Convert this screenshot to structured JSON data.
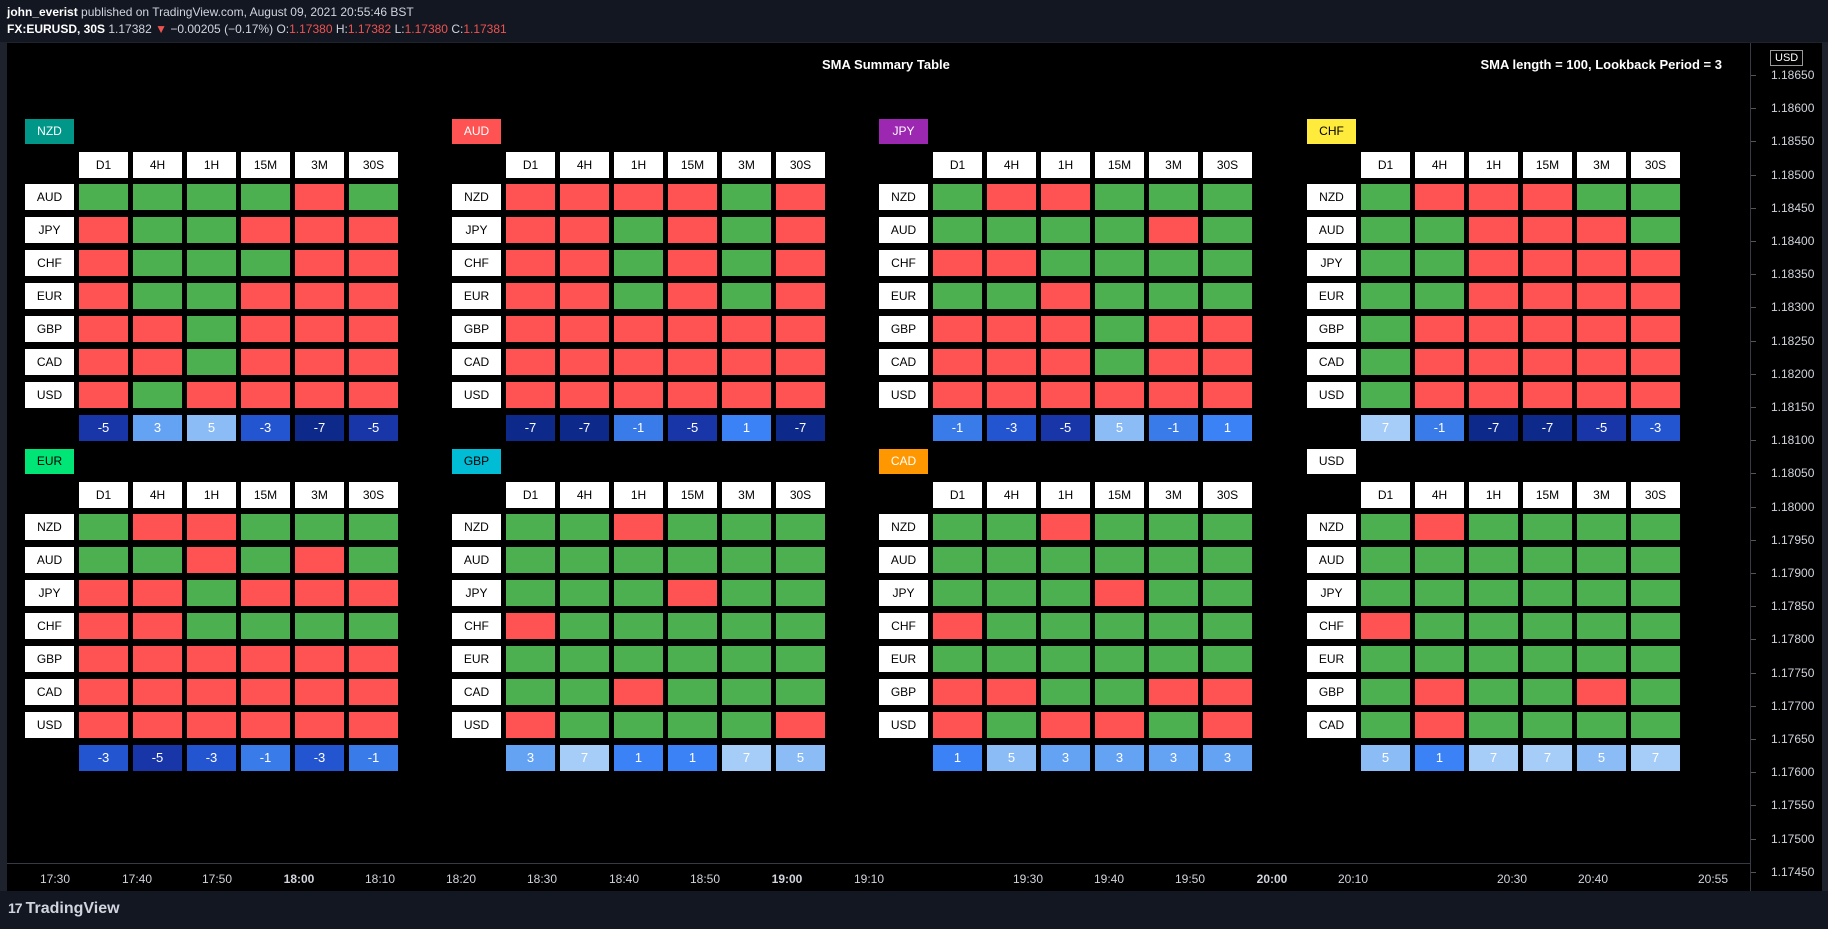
{
  "header": {
    "author": "john_everist",
    "published": "published on TradingView.com, August 09, 2021 20:55:46 BST",
    "symbol": "FX:EURUSD, 30S",
    "price": "1.17382",
    "change": "−0.00205 (−0.17%)",
    "o_label": "O:",
    "o_val": "1.17380",
    "h_label": "H:",
    "h_val": "1.17382",
    "l_label": "L:",
    "l_val": "1.17380",
    "c_label": "C:",
    "c_val": "1.17381"
  },
  "chart_title": "SMA Summary Table",
  "chart_params": "SMA length = 100, Lookback Period = 3",
  "currency_label": "USD",
  "price_ticks": [
    "1.18650",
    "1.18600",
    "1.18550",
    "1.18500",
    "1.18450",
    "1.18400",
    "1.18350",
    "1.18300",
    "1.18250",
    "1.18200",
    "1.18150",
    "1.18100",
    "1.18050",
    "1.18000",
    "1.17950",
    "1.17900",
    "1.17850",
    "1.17800",
    "1.17750",
    "1.17700",
    "1.17650",
    "1.17600",
    "1.17550",
    "1.17500",
    "1.17450"
  ],
  "time_ticks": [
    "17:30",
    "17:40",
    "17:50",
    "18:00",
    "18:10",
    "18:20",
    "18:30",
    "18:40",
    "18:50",
    "19:00",
    "19:10",
    "19:30",
    "19:40",
    "19:50",
    "20:00",
    "20:10",
    "20:30",
    "20:40",
    "20:55"
  ],
  "time_bold": [
    "18:00",
    "19:00",
    "20:00"
  ],
  "footer": {
    "logo_mark": "17",
    "logo_text": "TradingView"
  },
  "timeframes": [
    "D1",
    "4H",
    "1H",
    "15M",
    "3M",
    "30S"
  ],
  "colors": {
    "green": "#4caf50",
    "red": "#ff5252"
  },
  "tables": [
    {
      "base": "NZD",
      "color": "#009688",
      "text": "#fff",
      "rows": [
        "AUD",
        "JPY",
        "CHF",
        "EUR",
        "GBP",
        "CAD",
        "USD"
      ],
      "cells": [
        "GGGGRG",
        "RGGRRR",
        "RGGGRR",
        "RGGRRR",
        "RRGRRR",
        "RRGRRR",
        "RGRRRR"
      ],
      "sums": [
        "-5",
        "3",
        "5",
        "-3",
        "-7",
        "-5"
      ]
    },
    {
      "base": "AUD",
      "color": "#ff5252",
      "text": "#fff",
      "rows": [
        "NZD",
        "JPY",
        "CHF",
        "EUR",
        "GBP",
        "CAD",
        "USD"
      ],
      "cells": [
        "RRRRGR",
        "RRGRGR",
        "RRGRGR",
        "RRGRGR",
        "RRRRRR",
        "RRRRRR",
        "RRRRRR"
      ],
      "sums": [
        "-7",
        "-7",
        "-1",
        "-5",
        "1",
        "-7"
      ]
    },
    {
      "base": "JPY",
      "color": "#9c27b0",
      "text": "#fff",
      "rows": [
        "NZD",
        "AUD",
        "CHF",
        "EUR",
        "GBP",
        "CAD",
        "USD"
      ],
      "cells": [
        "GRRGGG",
        "GGGGRG",
        "RRGGGG",
        "GGRGGG",
        "RRRGRR",
        "RRRGRR",
        "RRRRRR"
      ],
      "sums": [
        "-1",
        "-3",
        "-5",
        "5",
        "-1",
        "1"
      ]
    },
    {
      "base": "CHF",
      "color": "#ffeb3b",
      "text": "#000",
      "rows": [
        "NZD",
        "AUD",
        "JPY",
        "EUR",
        "GBP",
        "CAD",
        "USD"
      ],
      "cells": [
        "GRRRGG",
        "GGRRRG",
        "GGRRRR",
        "GGRRRR",
        "GRRRRR",
        "GRRRRR",
        "GRRRRR"
      ],
      "sums": [
        "7",
        "-1",
        "-7",
        "-7",
        "-5",
        "-3"
      ]
    },
    {
      "base": "EUR",
      "color": "#00e676",
      "text": "#000",
      "rows": [
        "NZD",
        "AUD",
        "JPY",
        "CHF",
        "GBP",
        "CAD",
        "USD"
      ],
      "cells": [
        "GRRGGG",
        "GGRGRG",
        "RRGRRR",
        "RRGGGG",
        "RRRRRR",
        "RRRRRR",
        "RRRRRR"
      ],
      "sums": [
        "-3",
        "-5",
        "-3",
        "-1",
        "-3",
        "-1"
      ]
    },
    {
      "base": "GBP",
      "color": "#00bcd4",
      "text": "#000",
      "rows": [
        "NZD",
        "AUD",
        "JPY",
        "CHF",
        "EUR",
        "CAD",
        "USD"
      ],
      "cells": [
        "GGRGGG",
        "GGGGGG",
        "GGGRGG",
        "RGGGGG",
        "GGGGGG",
        "GGRGGG",
        "RGGGGR"
      ],
      "sums": [
        "3",
        "7",
        "1",
        "1",
        "7",
        "5"
      ]
    },
    {
      "base": "CAD",
      "color": "#ff9800",
      "text": "#fff",
      "rows": [
        "NZD",
        "AUD",
        "JPY",
        "CHF",
        "EUR",
        "GBP",
        "USD"
      ],
      "cells": [
        "GGRGGG",
        "GGGGGG",
        "GGGRGG",
        "RGGGGG",
        "GGGGGG",
        "RRGGRR",
        "RGRRGR"
      ],
      "sums": [
        "1",
        "5",
        "3",
        "3",
        "3",
        "3"
      ]
    },
    {
      "base": "USD",
      "color": "#ffffff",
      "text": "#000",
      "rows": [
        "NZD",
        "AUD",
        "JPY",
        "CHF",
        "EUR",
        "GBP",
        "CAD"
      ],
      "cells": [
        "GRGGGG",
        "GGGGGG",
        "GGGGGG",
        "RGGGGG",
        "GGGGGG",
        "GRGGRG",
        "GRGGGG"
      ],
      "sums": [
        "5",
        "1",
        "7",
        "7",
        "5",
        "7"
      ]
    }
  ]
}
